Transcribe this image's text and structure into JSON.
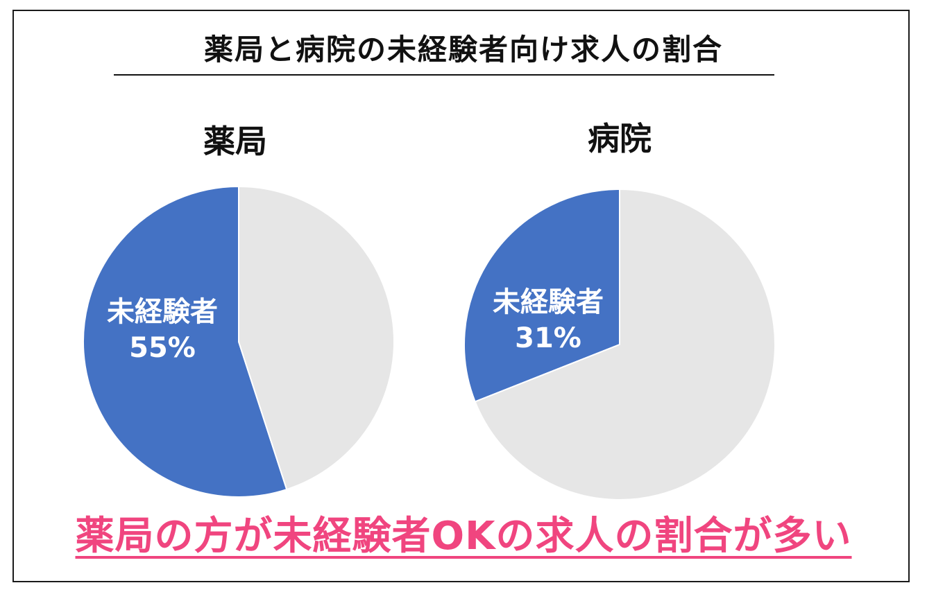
{
  "header": {
    "title": "薬局と病院の未経験者向け求人の割合"
  },
  "conclusion": "薬局の方が未経験者OKの求人の割合が多い",
  "colors": {
    "highlight": "#4472c4",
    "rest": "#e6e6e6",
    "conclusion": "#f0457f"
  },
  "chart_data": [
    {
      "type": "pie",
      "title": "薬局",
      "slices": [
        {
          "label": "未経験者",
          "value": 55,
          "value_label": "55%",
          "color": "#4472c4"
        },
        {
          "label": "",
          "value": 45,
          "color": "#e6e6e6"
        }
      ]
    },
    {
      "type": "pie",
      "title": "病院",
      "slices": [
        {
          "label": "未経験者",
          "value": 31,
          "value_label": "31%",
          "color": "#4472c4"
        },
        {
          "label": "",
          "value": 69,
          "color": "#e6e6e6"
        }
      ]
    }
  ]
}
